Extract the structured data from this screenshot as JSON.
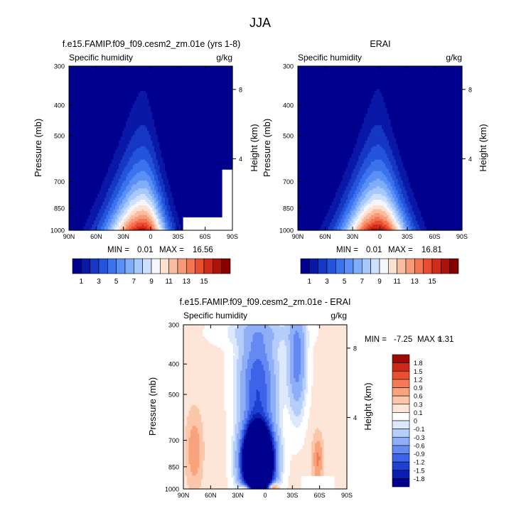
{
  "figure": {
    "season_title": "JJA"
  },
  "colors": {
    "abs_palette": [
      "#00008f",
      "#0a18a8",
      "#1636c4",
      "#2454dc",
      "#3b72ee",
      "#5a8ff6",
      "#7fadfa",
      "#a6c8fb",
      "#cde0fc",
      "#f4f6fc",
      "#fde0ce",
      "#f9bea2",
      "#f79a78",
      "#f47552",
      "#ea4d30",
      "#d02c1a",
      "#ad1208",
      "#870000"
    ],
    "diff_palette": [
      "#00008f",
      "#0a1eb0",
      "#1e40d0",
      "#3d63ea",
      "#6489f3",
      "#8eaff8",
      "#b5cdfb",
      "#dce8fc",
      "#ffffff",
      "#fde6d8",
      "#fbc6aa",
      "#f9a27e",
      "#f57a55",
      "#e9502f",
      "#cc2a16",
      "#9e0b04"
    ]
  },
  "chart_data": [
    {
      "id": "model",
      "type": "contour",
      "title": "f.e15.FAMIP.f09_f09.cesm2_zm.01e (yrs 1-8)",
      "left_label": "Specific humidity",
      "right_label": "g/kg",
      "xlabel": "",
      "ylabel": "Pressure (mb)",
      "y2label": "Height (km)",
      "x_ticks": [
        "90N",
        "60N",
        "30N",
        "0",
        "30S",
        "60S",
        "90S"
      ],
      "x_values": [
        90,
        60,
        30,
        0,
        -30,
        -60,
        -90
      ],
      "y_ticks": [
        300,
        400,
        500,
        700,
        850,
        1000
      ],
      "y2_ticks": [
        8,
        4
      ],
      "y2_tick_pressure": [
        356,
        592
      ],
      "stats": {
        "min_label": "MIN =",
        "min": "0.01",
        "max_label": "MAX =",
        "max": "16.56"
      },
      "colorbar": {
        "levels": [
          1,
          2,
          3,
          4,
          5,
          6,
          7,
          8,
          9,
          10,
          11,
          12,
          13,
          14,
          15,
          16,
          17
        ],
        "tick_labels": [
          "1",
          "3",
          "5",
          "7",
          "9",
          "11",
          "13",
          "15"
        ],
        "tick_index": [
          0,
          2,
          4,
          6,
          8,
          10,
          12,
          14
        ]
      },
      "field": {
        "center_lat": 8,
        "peak": 16.5,
        "top_width": 14,
        "bottom_width": 40,
        "scale_height": 0.36,
        "asym": 1.6,
        "mask": [
          {
            "lat_from": -35,
            "lat_to": -90,
            "p_from": 905
          },
          {
            "lat_from": -78,
            "lat_to": -90,
            "p_from": 640
          }
        ]
      }
    },
    {
      "id": "obs",
      "type": "contour",
      "title": "ERAI",
      "left_label": "Specific humidity",
      "right_label": "g/kg",
      "xlabel": "",
      "ylabel": "Pressure (mb)",
      "y2label": "Height (km)",
      "x_ticks": [
        "90N",
        "60N",
        "30N",
        "0",
        "30S",
        "60S",
        "90S"
      ],
      "x_values": [
        90,
        60,
        30,
        0,
        -30,
        -60,
        -90
      ],
      "y_ticks": [
        300,
        400,
        500,
        700,
        850,
        1000
      ],
      "y2_ticks": [
        8,
        4
      ],
      "y2_tick_pressure": [
        356,
        592
      ],
      "stats": {
        "min_label": "MIN =",
        "min": "0.01",
        "max_label": "MAX =",
        "max": "16.81"
      },
      "colorbar": {
        "levels": [
          1,
          2,
          3,
          4,
          5,
          6,
          7,
          8,
          9,
          10,
          11,
          12,
          13,
          14,
          15,
          16,
          17
        ],
        "tick_labels": [
          "1",
          "3",
          "5",
          "7",
          "9",
          "11",
          "13",
          "15"
        ],
        "tick_index": [
          0,
          2,
          4,
          6,
          8,
          10,
          12,
          14
        ]
      },
      "field": {
        "center_lat": 2,
        "peak": 16.8,
        "top_width": 10,
        "bottom_width": 38,
        "scale_height": 0.36,
        "asym": 1.2,
        "mask": []
      }
    },
    {
      "id": "diff",
      "type": "contour",
      "title": "f.e15.FAMIP.f09_f09.cesm2_zm.01e - ERAI",
      "left_label": "Specific humidity",
      "right_label": "g/kg",
      "xlabel": "",
      "ylabel": "Pressure (mb)",
      "y2label": "Height (km)",
      "x_ticks": [
        "90N",
        "60N",
        "30N",
        "0",
        "30S",
        "60S",
        "90S"
      ],
      "x_values": [
        90,
        60,
        30,
        0,
        -30,
        -60,
        -90
      ],
      "y_ticks": [
        300,
        400,
        500,
        700,
        850,
        1000
      ],
      "y2_ticks": [
        8,
        4
      ],
      "y2_tick_pressure": [
        356,
        592
      ],
      "stats": {
        "min_label": "MIN =",
        "min": "-7.25",
        "max_label": "MAX =",
        "max": "1.31"
      },
      "colorbar": {
        "levels": [
          -1.8,
          -1.5,
          -1.2,
          -0.9,
          -0.6,
          -0.3,
          -0.1,
          0,
          0.1,
          0.3,
          0.6,
          0.9,
          1.2,
          1.5,
          1.8
        ],
        "tick_labels": [
          "1.8",
          "1.5",
          "1.2",
          "0.9",
          "0.6",
          "0.3",
          "0.1",
          "0",
          "-0.1",
          "-0.3",
          "-0.6",
          "-0.9",
          "-1.2",
          "-1.5",
          "-1.8"
        ]
      },
      "field": {
        "mask": [
          {
            "lat_from": -40,
            "lat_to": -77,
            "p_from": 905
          }
        ]
      }
    }
  ]
}
